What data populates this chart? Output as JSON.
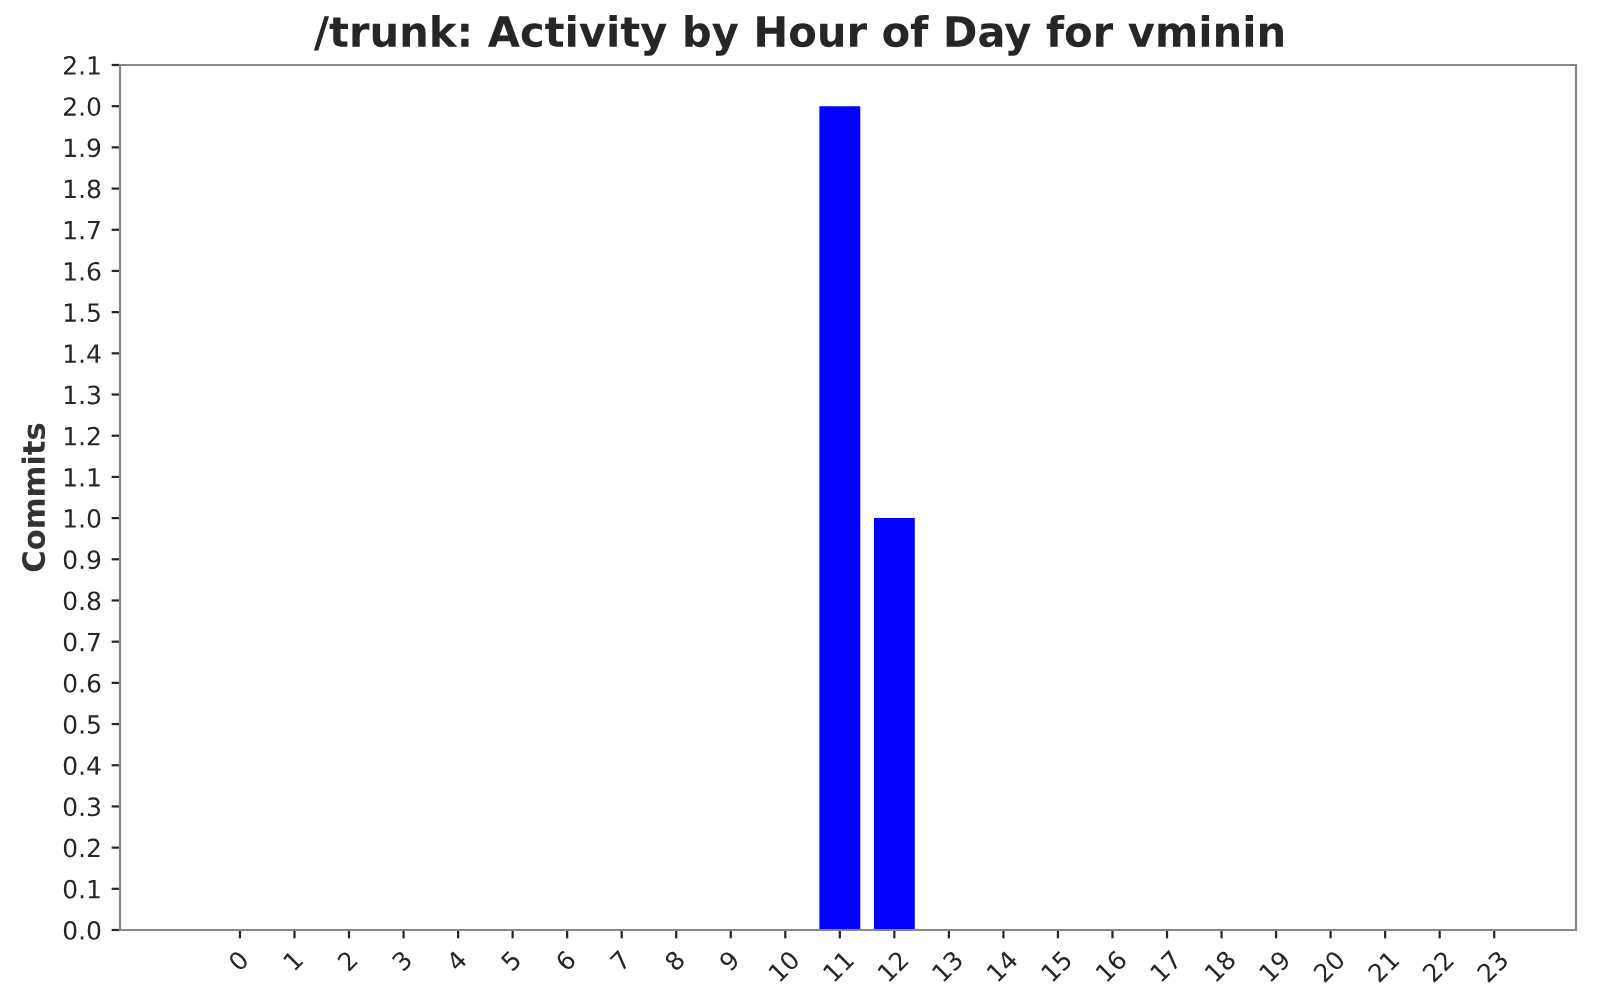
{
  "chart_data": {
    "type": "bar",
    "title": "/trunk: Activity by Hour of Day for vminin",
    "ylabel": "Commits",
    "categories": [
      "0",
      "1",
      "2",
      "3",
      "4",
      "5",
      "6",
      "7",
      "8",
      "9",
      "10",
      "11",
      "12",
      "13",
      "14",
      "15",
      "16",
      "17",
      "18",
      "19",
      "20",
      "21",
      "22",
      "23"
    ],
    "values": [
      0,
      0,
      0,
      0,
      0,
      0,
      0,
      0,
      0,
      0,
      0,
      2,
      1,
      0,
      0,
      0,
      0,
      0,
      0,
      0,
      0,
      0,
      0,
      0
    ],
    "color": "#0000ff",
    "ylim": [
      0,
      2.1
    ],
    "yticks": [
      {
        "value": 0,
        "label": "0.0"
      },
      0.1,
      0.2,
      0.3,
      0.4,
      0.5,
      0.6,
      0.7,
      0.8,
      0.9,
      {
        "value": 1,
        "label": "1.0"
      },
      1.1,
      1.2,
      1.3,
      1.4,
      1.5,
      1.6,
      1.7,
      1.8,
      1.9,
      {
        "value": 2,
        "label": "2.0"
      },
      2.1
    ],
    "grid": false
  }
}
